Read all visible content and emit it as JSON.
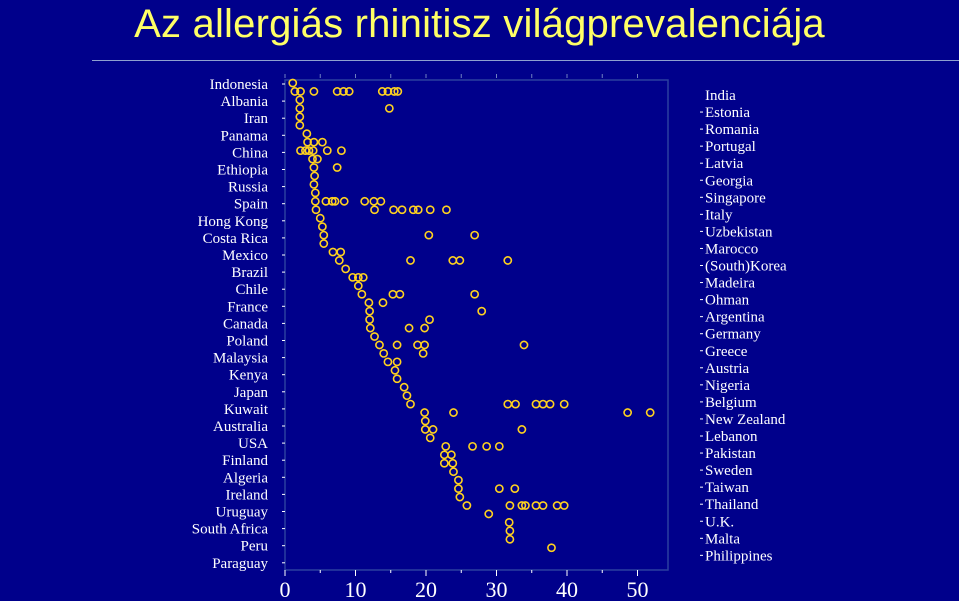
{
  "title": "Az allergiás rhinitisz világprevalenciája",
  "colors": {
    "background": "#00008b",
    "title": "#ffff66",
    "marker": "#ffd21f",
    "text": "#ffffff",
    "frame": "#2a3fa0"
  },
  "chart_data": {
    "type": "scatter",
    "title": "Az allergiás rhinitisz világprevalenciája",
    "xlabel": "",
    "ylabel": "",
    "xlim": [
      0,
      55
    ],
    "xticks": [
      0,
      10,
      20,
      30,
      40,
      50
    ],
    "grid": false,
    "left_labels": [
      "Indonesia",
      "Albania",
      "Iran",
      "Panama",
      "China",
      "Ethiopia",
      "Russia",
      "Spain",
      "Hong Kong",
      "Costa Rica",
      "Mexico",
      "Brazil",
      "Chile",
      "France",
      "Canada",
      "Poland",
      "Malaysia",
      "Kenya",
      "Japan",
      "Kuwait",
      "Australia",
      "USA",
      "Finland",
      "Algeria",
      "Ireland",
      "Uruguay",
      "South Africa",
      "Peru",
      "Paraguay"
    ],
    "right_labels": [
      "India",
      "Estonia",
      "Romania",
      "Portugal",
      "Latvia",
      "Georgia",
      "Singapore",
      "Italy",
      "Uzbekistan",
      "Marocco",
      "(South)Korea",
      "Madeira",
      "Ohman",
      "Argentina",
      "Germany",
      "Greece",
      "Austria",
      "Nigeria",
      "Belgium",
      "New Zealand",
      "Lebanon",
      "Pakistan",
      "Sweden",
      "Taiwan",
      "Thailand",
      "U.K.",
      "Malta",
      "Philippines"
    ],
    "rows": [
      [
        1.1
      ],
      [
        1.4,
        2.2,
        4.1,
        7.4,
        8.3,
        9.1,
        13.8,
        14.6,
        15.5,
        16.0
      ],
      [
        2.1
      ],
      [
        2.1,
        14.8
      ],
      [
        2.1
      ],
      [
        2.1
      ],
      [
        3.1
      ],
      [
        3.2,
        4.1,
        5.3
      ],
      [
        2.2,
        2.9,
        3.4,
        4.0,
        6.0,
        8.0
      ],
      [
        3.9,
        4.6
      ],
      [
        4.1,
        7.4
      ],
      [
        4.2
      ],
      [
        4.1
      ],
      [
        4.3
      ],
      [
        4.3,
        5.8,
        6.7,
        7.1,
        8.4,
        11.3,
        12.6,
        13.6
      ],
      [
        4.4,
        12.7,
        15.4,
        16.6,
        18.2,
        18.9,
        20.6,
        22.9
      ],
      [
        5.0
      ],
      [
        5.3
      ],
      [
        5.5,
        20.4,
        26.9
      ],
      [
        5.5
      ],
      [
        6.8,
        7.9
      ],
      [
        7.7,
        17.8,
        23.8,
        24.8,
        31.6
      ],
      [
        8.6
      ],
      [
        9.6,
        10.4,
        11.1
      ],
      [
        10.4
      ],
      [
        10.9,
        15.3,
        16.3,
        26.9
      ],
      [
        11.9,
        13.9
      ],
      [
        12.0,
        27.9
      ],
      [
        12.0,
        20.5
      ],
      [
        12.1,
        17.6,
        19.8
      ],
      [
        12.7
      ],
      [
        13.4,
        15.9,
        18.8,
        19.8,
        33.9
      ],
      [
        14.0,
        19.6
      ],
      [
        14.6,
        15.9
      ],
      [
        15.6
      ],
      [
        15.9
      ],
      [
        16.9
      ],
      [
        17.3
      ],
      [
        17.8,
        31.6,
        32.7,
        35.6,
        36.6,
        37.6,
        39.6
      ],
      [
        19.8,
        23.9,
        48.6,
        51.8
      ],
      [
        19.9
      ],
      [
        19.9,
        21.0,
        33.6
      ],
      [
        20.6
      ],
      [
        22.8,
        26.6,
        28.6,
        30.4
      ],
      [
        22.6,
        23.6
      ],
      [
        22.6,
        23.8
      ],
      [
        23.9
      ],
      [
        24.6
      ],
      [
        24.6,
        30.4,
        32.6
      ],
      [
        24.8
      ],
      [
        25.8,
        31.9,
        33.6,
        34.1,
        35.6,
        36.6,
        38.6,
        39.6
      ],
      [
        28.9
      ],
      [
        31.8
      ],
      [
        31.9
      ],
      [
        31.9
      ],
      [
        37.8
      ]
    ]
  }
}
